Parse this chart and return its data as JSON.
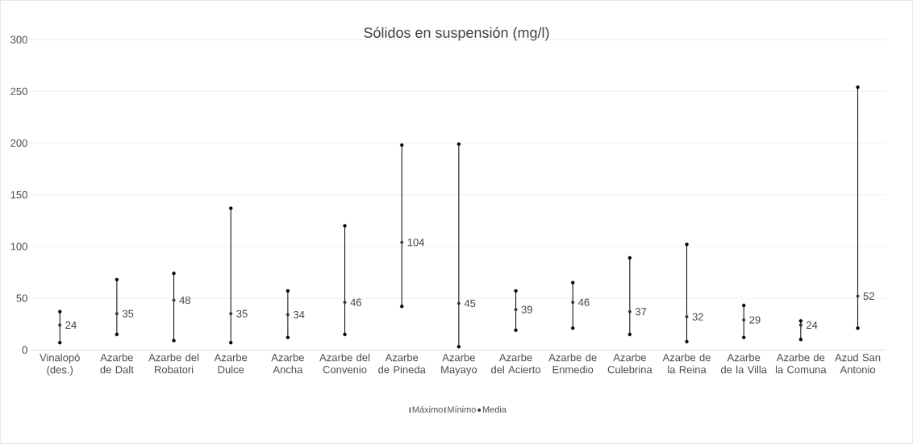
{
  "chart_data": {
    "type": "scatter",
    "title": "Sólidos en suspensión (mg/l)",
    "categories": [
      "Vinalopó (des.)",
      "Azarbe de Dalt",
      "Azarbe del Robatori",
      "Azarbe Dulce",
      "Azarbe Ancha",
      "Azarbe del Convenio",
      "Azarbe de Pineda",
      "Azarbe Mayayo",
      "Azarbe del Acierto",
      "Azarbe de Enmedio",
      "Azarbe Culebrina",
      "Azarbe de la Reina",
      "Azarbe de la Villa",
      "Azarbe de la Comuna",
      "Azud San Antonio"
    ],
    "series": [
      {
        "name": "Máximo",
        "marker": "none",
        "color": "#000000",
        "values": [
          37,
          68,
          74,
          137,
          57,
          120,
          198,
          199,
          57,
          65,
          89,
          102,
          43,
          28,
          254
        ]
      },
      {
        "name": "Mínimo",
        "marker": "none",
        "color": "#000000",
        "values": [
          7,
          15,
          9,
          7,
          12,
          15,
          42,
          3,
          19,
          21,
          15,
          8,
          12,
          10,
          21
        ]
      },
      {
        "name": "Media",
        "marker": "circle",
        "color": "#1f3864",
        "values": [
          24,
          35,
          48,
          35,
          34,
          46,
          104,
          45,
          39,
          46,
          37,
          32,
          29,
          24,
          52
        ],
        "value_labels": [
          "24",
          "35",
          "48",
          "35",
          "34",
          "46",
          "104",
          "45",
          "39",
          "46",
          "37",
          "32",
          "29",
          "24",
          "52"
        ]
      }
    ],
    "ylim": [
      0,
      300
    ],
    "yticks": [
      0,
      50,
      100,
      150,
      200,
      250,
      300
    ],
    "grid": "y",
    "legend": "bottom"
  }
}
